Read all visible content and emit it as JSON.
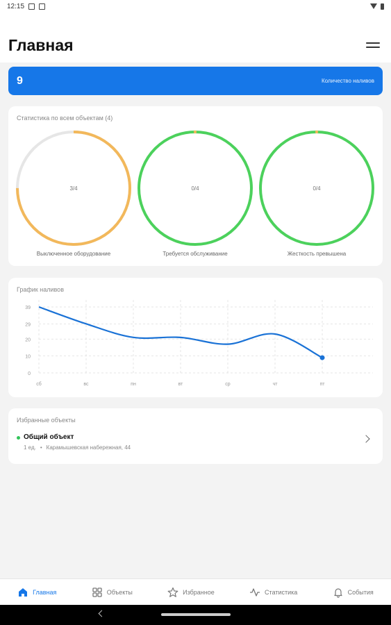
{
  "status_bar": {
    "time": "12:15"
  },
  "header": {
    "title": "Главная"
  },
  "banner": {
    "value": "9",
    "label": "Количество наливов",
    "color": "#1677e8"
  },
  "stats": {
    "title": "Статистика по всем объектам (4)",
    "rings": [
      {
        "value": "3/4",
        "label": "Выключенное оборудование",
        "fraction": 0.75,
        "color": "#f2b85b"
      },
      {
        "value": "0/4",
        "label": "Требуется обслуживание",
        "fraction": 0,
        "color": "#4cd15c"
      },
      {
        "value": "0/4",
        "label": "Жесткость превышена",
        "fraction": 0,
        "color": "#4cd15c"
      }
    ]
  },
  "chart": {
    "title": "График наливов",
    "chart_data": {
      "type": "line",
      "categories": [
        "сб",
        "вс",
        "пн",
        "вт",
        "ср",
        "чт",
        "пт"
      ],
      "y_ticks": [
        0,
        10,
        20,
        29,
        39
      ],
      "ylim": [
        0,
        39
      ],
      "series": [
        {
          "values": [
            39,
            29,
            21,
            21,
            17,
            23,
            9
          ]
        }
      ],
      "grid": true,
      "line_color": "#1a72d6"
    }
  },
  "favorites": {
    "title": "Избранные объекты",
    "items": [
      {
        "name": "Общий объект",
        "count": "1 ед.",
        "address": "Карамышевская набережная, 44"
      }
    ]
  },
  "bottom_nav": {
    "items": [
      {
        "label": "Главная",
        "icon": "home-icon"
      },
      {
        "label": "Объекты",
        "icon": "grid-icon"
      },
      {
        "label": "Избранное",
        "icon": "star-icon"
      },
      {
        "label": "Статистика",
        "icon": "activity-icon"
      },
      {
        "label": "События",
        "icon": "bell-icon"
      }
    ]
  }
}
